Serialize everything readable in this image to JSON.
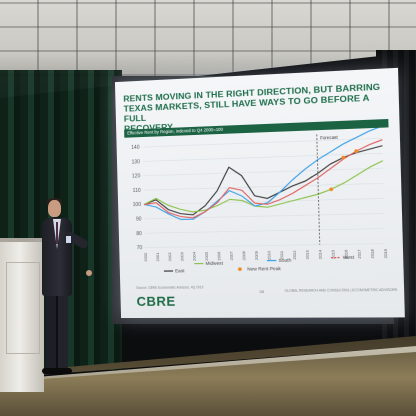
{
  "slide": {
    "title_lines": [
      "RENTS MOVING IN THE RIGHT DIRECTION, BUT BARRING",
      "TEXAS MARKETS, STILL HAVE WAYS TO GO BEFORE A FULL",
      "RECOVERY"
    ],
    "chart_header": "Effective Rent by Region, indexed to Q4 2000=100",
    "forecast_label": "Forecast",
    "logo": "CBRE",
    "page_number": "38",
    "footer_right": "GLOBAL RESEARCH AND CONSULTING | ECONOMETRIC ADVISORS",
    "footer_left": "Source: CBRE Econometric Advisors, 4Q 2013"
  },
  "chart_data": {
    "type": "line",
    "yticks": [
      70,
      80,
      90,
      100,
      110,
      120,
      130,
      140
    ],
    "ylim": [
      70,
      140
    ],
    "x_years": [
      2000,
      2001,
      2002,
      2003,
      2004,
      2005,
      2006,
      2007,
      2008,
      2009,
      2010,
      2011,
      2012,
      2013,
      2014,
      2015,
      2016,
      2017,
      2018,
      2019
    ],
    "forecast_start": 2014,
    "colors": {
      "East": "#3b3b3b",
      "Midwest": "#8bc34a",
      "South": "#3aa0e8",
      "West": "#e06060",
      "New Rent Peak": "#f08a24"
    },
    "series": [
      {
        "name": "East",
        "values": [
          100,
          103,
          96,
          93,
          92,
          98,
          108,
          124,
          118,
          104,
          102,
          106,
          110,
          113,
          118,
          124,
          128,
          131,
          133,
          135
        ]
      },
      {
        "name": "Midwest",
        "values": [
          100,
          104,
          99,
          96,
          94,
          95,
          98,
          102,
          101,
          97,
          96,
          98,
          100,
          102,
          104,
          107,
          111,
          116,
          121,
          125
        ]
      },
      {
        "name": "South",
        "values": [
          100,
          98,
          93,
          89,
          89,
          94,
          101,
          108,
          104,
          97,
          99,
          106,
          114,
          121,
          127,
          132,
          137,
          141,
          145,
          148
        ]
      },
      {
        "name": "West",
        "values": [
          100,
          101,
          94,
          91,
          90,
          94,
          100,
          110,
          108,
          99,
          98,
          101,
          105,
          110,
          115,
          121,
          127,
          132,
          136,
          139
        ]
      }
    ],
    "peak_markers": [
      {
        "series": "East",
        "year": 2016,
        "value": 128
      },
      {
        "series": "West",
        "year": 2017,
        "value": 132
      },
      {
        "series": "Midwest",
        "year": 2015,
        "value": 107
      }
    ],
    "legend": [
      {
        "name": "Midwest",
        "style": "line"
      },
      {
        "name": "South",
        "style": "line"
      },
      {
        "name": "West",
        "style": "dash"
      },
      {
        "name": "East",
        "style": "line"
      },
      {
        "name": "New Rent Peak",
        "style": "dot"
      }
    ]
  }
}
